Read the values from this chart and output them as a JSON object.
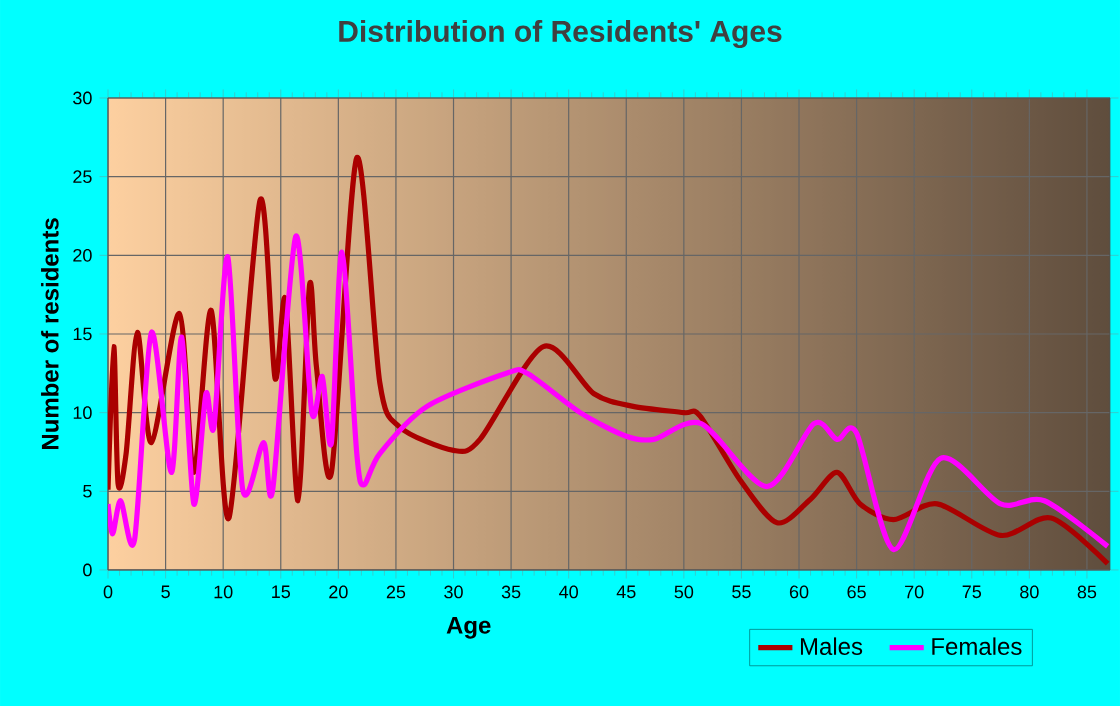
{
  "chart_data": {
    "type": "line",
    "title": "Distribution of Residents' Ages",
    "xlabel": "Age",
    "ylabel": "Number of residents",
    "xlim": [
      0,
      87
    ],
    "ylim": [
      0,
      30
    ],
    "xticks": [
      0,
      5,
      10,
      15,
      20,
      25,
      30,
      35,
      40,
      45,
      50,
      55,
      60,
      65,
      70,
      75,
      80,
      85
    ],
    "yticks": [
      0,
      5,
      10,
      15,
      20,
      25,
      30
    ],
    "grid": true,
    "legend": "bottom right",
    "marker": "none",
    "line_style": "solid",
    "series": [
      {
        "name": "Males",
        "color": "#aa0000",
        "x": [
          0,
          0.5,
          0.87,
          1.57,
          2.55,
          3.77,
          6.2,
          7.45,
          8.96,
          10.5,
          13.2,
          14.5,
          15.4,
          16.5,
          17.5,
          18.1,
          19.4,
          21.6,
          23.6,
          25.3,
          30,
          32.3,
          37.8,
          42.2,
          45.6,
          50,
          51.4,
          54.9,
          58.1,
          61,
          63.3,
          65.3,
          68.2,
          72,
          77.5,
          81.9,
          86.8
        ],
        "values": [
          5.1,
          14.2,
          5.5,
          7.4,
          15.1,
          8.1,
          16.3,
          6.2,
          16.5,
          3.3,
          23.5,
          12.2,
          17.2,
          4.4,
          18.1,
          12.9,
          6.2,
          26.2,
          11.9,
          9.1,
          7.6,
          8.3,
          14.2,
          11.2,
          10.4,
          10,
          9.8,
          5.7,
          3,
          4.5,
          6.2,
          4.2,
          3.2,
          4.2,
          2.2,
          3.3,
          0.4
        ]
      },
      {
        "name": "Females",
        "color": "#ff00ff",
        "x": [
          0,
          0.4,
          1.1,
          2.3,
          3.77,
          5.5,
          6.4,
          7.45,
          8.5,
          9.2,
          10.4,
          11.7,
          13.5,
          14.3,
          16.3,
          17.7,
          18.6,
          19.4,
          20.3,
          21.6,
          22.2,
          23.6,
          27.7,
          34.6,
          36.4,
          41,
          45,
          47.4,
          51.5,
          57.2,
          61.3,
          63.3,
          65,
          68.2,
          72.3,
          77.5,
          81.3,
          86.8
        ],
        "values": [
          4.2,
          2.3,
          4.4,
          1.9,
          15.1,
          6.2,
          14.8,
          4.2,
          11.2,
          9.1,
          19.9,
          5.1,
          8.1,
          5.1,
          21.2,
          10,
          12.3,
          8.1,
          20.2,
          7.4,
          5.4,
          7.4,
          10.4,
          12.5,
          12.5,
          10,
          8.5,
          8.3,
          9.3,
          5.3,
          9.3,
          8.3,
          8.7,
          1.3,
          7.1,
          4.2,
          4.4,
          1.5
        ]
      }
    ]
  }
}
